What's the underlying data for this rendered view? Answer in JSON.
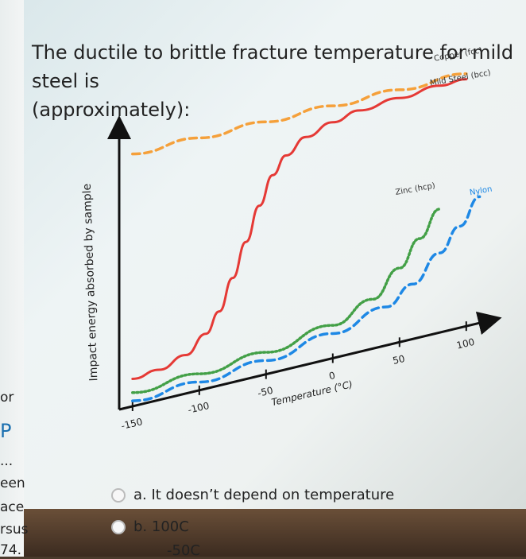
{
  "question": {
    "line1": "The ductile to brittle fracture temperature for mild steel is",
    "line2": "(approximately):"
  },
  "sidebar": {
    "fragments": [
      "or",
      "P",
      "...",
      "een",
      "ace",
      "rsus",
      "74."
    ]
  },
  "options": [
    {
      "label": "a. It doesn’t depend on temperature"
    },
    {
      "label": "b. 100C"
    },
    {
      "label": "-50C"
    }
  ],
  "chart_data": {
    "type": "line",
    "xlabel": "Temperature (°C)",
    "ylabel": "Impact energy absorbed by sample",
    "x_ticks": [
      -150,
      -100,
      -50,
      0,
      50,
      100
    ],
    "x_tick_labels": [
      "-150",
      "-100",
      "-50",
      "0",
      "50",
      "100"
    ],
    "xlim": [
      -160,
      115
    ],
    "ylim": [
      0,
      100
    ],
    "y_ticks_shown": false,
    "grid": false,
    "series": [
      {
        "name": "Copper (fcc)",
        "style": "dashed",
        "color": "#f5a03a",
        "x": [
          -150,
          -100,
          -50,
          0,
          50,
          100
        ],
        "y": [
          92,
          92,
          92,
          92,
          92,
          92
        ]
      },
      {
        "name": "Mild Steel (bcc)",
        "style": "solid",
        "color": "#e53935",
        "x": [
          -150,
          -130,
          -110,
          -95,
          -85,
          -75,
          -65,
          -55,
          -45,
          -35,
          -20,
          0,
          20,
          50,
          80,
          100
        ],
        "y": [
          10,
          11,
          14,
          20,
          27,
          38,
          50,
          62,
          72,
          78,
          83,
          86,
          88,
          89,
          90,
          90
        ]
      },
      {
        "name": "Zinc (hcp)",
        "style": "dotted",
        "color": "#43a047",
        "x": [
          -150,
          -100,
          -50,
          0,
          30,
          50,
          65,
          80
        ],
        "y": [
          5,
          6,
          8,
          12,
          18,
          27,
          36,
          45
        ]
      },
      {
        "name": "Nylon",
        "style": "dashed",
        "color": "#1e88e5",
        "x": [
          -150,
          -100,
          -50,
          0,
          40,
          60,
          80,
          95,
          110
        ],
        "y": [
          2,
          3,
          5,
          9,
          14,
          20,
          29,
          37,
          46
        ]
      }
    ]
  }
}
